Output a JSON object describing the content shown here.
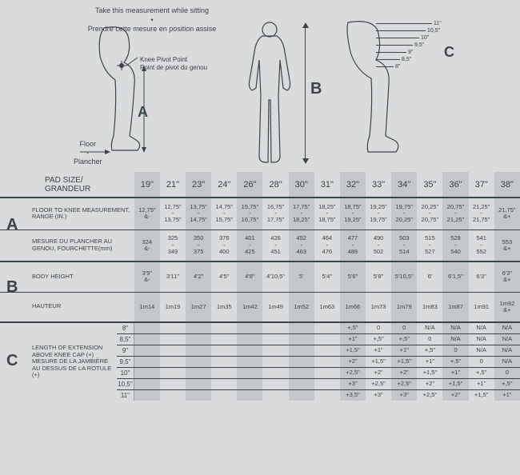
{
  "instructions": {
    "en": "Take this measurement while sitting",
    "bullet": "•",
    "fr": "Prendre cette mesure en position assise"
  },
  "diagramA": {
    "knee_en": "Knee Pivot Point",
    "knee_fr": "Point de pivot du genou",
    "letter": "A",
    "floor_en": "Floor",
    "dash": "-",
    "floor_fr": "Plancher"
  },
  "diagramB": {
    "letter": "B"
  },
  "diagramC": {
    "letter": "C",
    "scale": [
      "11\"",
      "10,5\"",
      "10\"",
      "9,5\"",
      "9\"",
      "8,5\"",
      "8\""
    ]
  },
  "header": {
    "title_line1": "PAD SIZE/",
    "title_line2": "GRANDEUR",
    "sizes": [
      "19\"",
      "21\"",
      "23\"",
      "24\"",
      "26\"",
      "28\"",
      "30\"",
      "31\"",
      "32\"",
      "33\"",
      "34\"",
      "35\"",
      "36\"",
      "37\"",
      "38\""
    ]
  },
  "sectionA": {
    "letter": "A",
    "row1_label": "FLOOR TO KNEE MEASUREMENT, RANGE (IN.)",
    "row1": [
      "12,75\" &-",
      "12,75\" - 13,75\"",
      "13,75\" - 14,75\"",
      "14,75\" - 15,75\"",
      "15,75\" - 16,75\"",
      "16,75\" - 17,75\"",
      "17,75\" - 18,25\"",
      "18,25\" - 18,75\"",
      "18,75\" - 19,25\"",
      "19,25\" - 19,75\"",
      "19,75\" - 20,25\"",
      "20,25\" - 20,75\"",
      "20,75\" - 21,25\"",
      "21,25\" - 21,75\"",
      "21,75\" &+"
    ],
    "row2_label": "MESURE DU PLANCHER AU GENOU, FOURCHETTE(mm)",
    "row2": [
      "324 &-",
      "325 - 349",
      "350 - 375",
      "376 - 400",
      "401 - 425",
      "426 - 451",
      "452 - 463",
      "464 - 476",
      "477 - 489",
      "490 - 502",
      "503 - 514",
      "515 - 527",
      "528 - 540",
      "541 - 552",
      "553 &+"
    ]
  },
  "sectionB": {
    "letter": "B",
    "row1_label": "BODY HEIGHT",
    "row1": [
      "3'9\" &-",
      "3'11\"",
      "4'2\"",
      "4'5\"",
      "4'8\"",
      "4'10,5\"",
      "5'",
      "5'4\"",
      "5'6\"",
      "5'8\"",
      "5'10,5\"",
      "6'",
      "6'1,5\"",
      "6'3\"",
      "6'3\" &+"
    ],
    "row2_label": "HAUTEUR",
    "row2": [
      "1m14",
      "1m19",
      "1m27",
      "1m35",
      "1m42",
      "1m49",
      "1m52",
      "1m63",
      "1m66",
      "1m73",
      "1m79",
      "1m83",
      "1m87",
      "1m91",
      "1m92 &+"
    ]
  },
  "sectionC": {
    "letter": "C",
    "label_en": "LENGTH OF EXTENSION ABOVE KNEE CAP (+)",
    "label_fr": "MESURE DE LA JAMBIÈRE AU DESSUS DE LA ROTULE (+)",
    "sublabels": [
      "8\"",
      "8,5\"",
      "9\"",
      "9,5\"",
      "10\"",
      "10,5\"",
      "11\""
    ],
    "rows": [
      [
        "",
        "",
        "",
        "",
        "",
        "",
        "",
        "",
        "+,5\"",
        "0",
        "0",
        "N/A",
        "N/A",
        "N/A",
        "N/A"
      ],
      [
        "",
        "",
        "",
        "",
        "",
        "",
        "",
        "",
        "+1\"",
        "+,5\"",
        "+,5\"",
        "0",
        "N/A",
        "N/A",
        "N/A"
      ],
      [
        "",
        "",
        "",
        "",
        "",
        "",
        "",
        "",
        "+1,5\"",
        "+1\"",
        "+1\"",
        "+,5\"",
        "0",
        "N/A",
        "N/A"
      ],
      [
        "",
        "",
        "",
        "",
        "",
        "",
        "",
        "",
        "+2\"",
        "+1,5\"",
        "+1,5\"",
        "+1\"",
        "+,5\"",
        "0",
        "N/A"
      ],
      [
        "",
        "",
        "",
        "",
        "",
        "",
        "",
        "",
        "+2,5\"",
        "+2\"",
        "+2\"",
        "+1,5\"",
        "+1\"",
        "+,5\"",
        "0"
      ],
      [
        "",
        "",
        "",
        "",
        "",
        "",
        "",
        "",
        "+3\"",
        "+2,5\"",
        "+2,5\"",
        "+2\"",
        "+1,5\"",
        "+1\"",
        "+,5\""
      ],
      [
        "",
        "",
        "",
        "",
        "",
        "",
        "",
        "",
        "+3,5\"",
        "+3\"",
        "+3\"",
        "+2,5\"",
        "+2\"",
        "+1,5\"",
        "+1\""
      ]
    ]
  },
  "colors": {
    "bg": "#d9dbdc",
    "shade": "#c3c7c9",
    "line": "#3a4547",
    "text": "#3a4547"
  }
}
